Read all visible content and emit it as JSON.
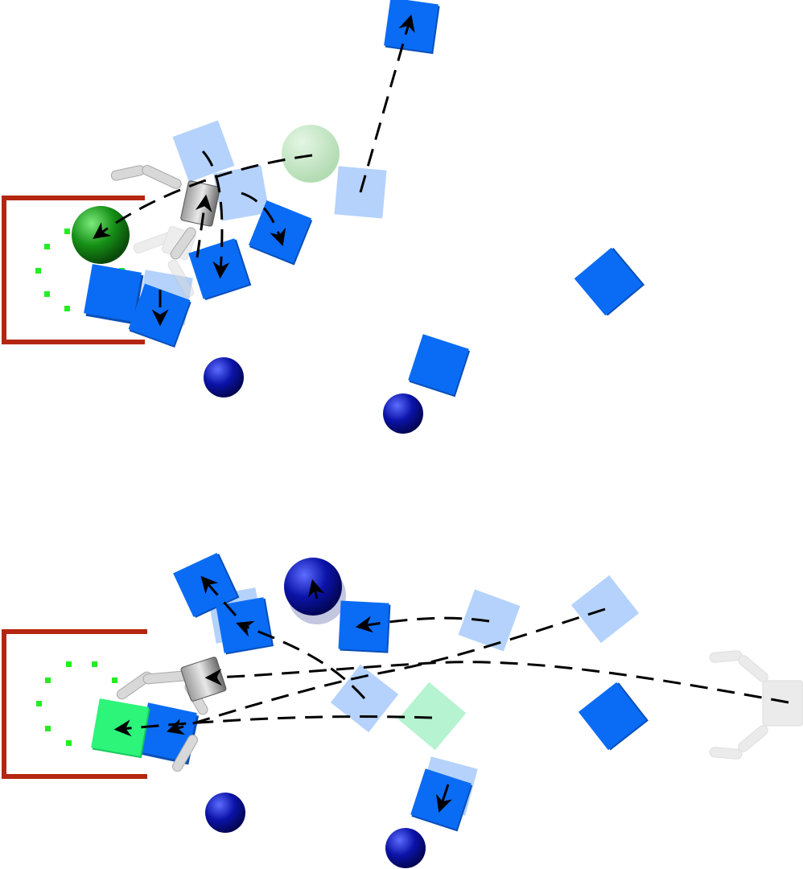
{
  "colors": {
    "background": "#ffffff",
    "goal_region": "#b5260f",
    "goal_marker": "#22ee22",
    "block": "#0a6cf5",
    "block_ghost": "#b4d2fb",
    "block_highlight": "#2cf57a",
    "block_highlight_ghost": "#b6f3d0",
    "obstacle_sphere": "#0b13a8",
    "target_sphere": "#148a14",
    "target_sphere_ghost": "#bfe6bf",
    "trajectory": "#000000",
    "gripper": "#d8d8d8"
  },
  "icons": {
    "goal": "bracket-goal-region",
    "block": "square-block",
    "sphere": "sphere",
    "gripper": "parallel-gripper",
    "path": "dashed-arrow-path"
  }
}
